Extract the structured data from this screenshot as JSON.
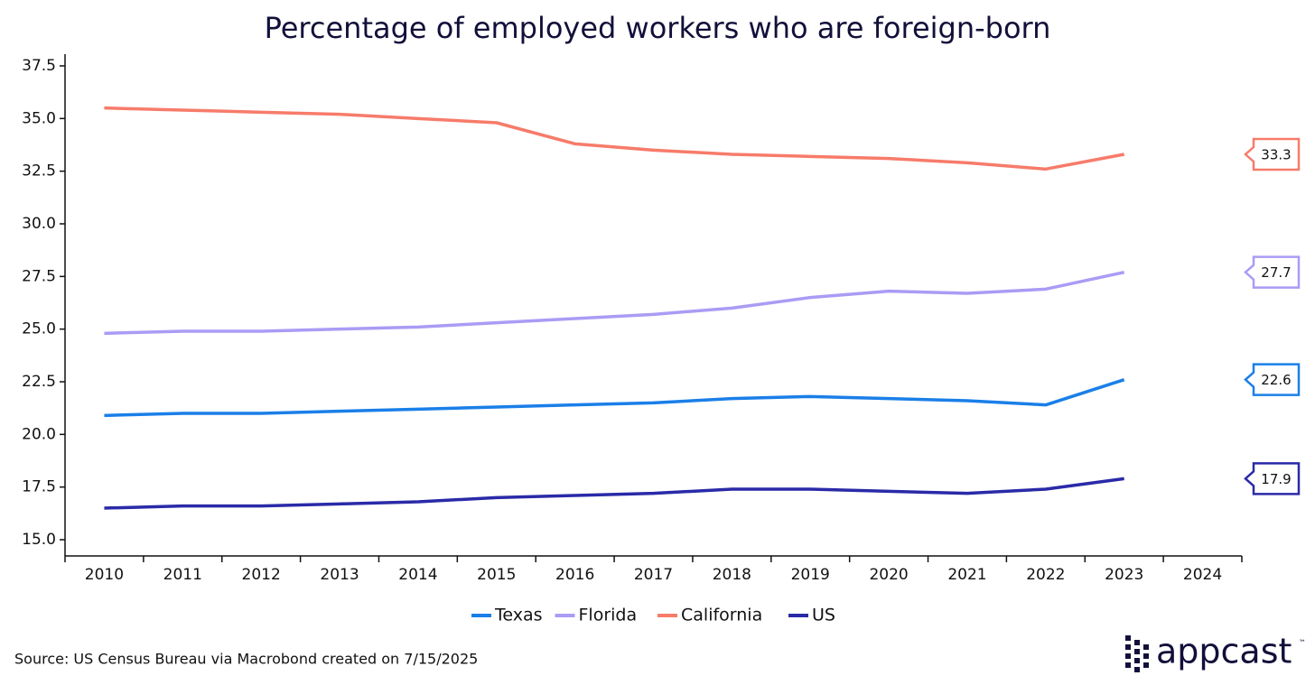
{
  "chart_data": {
    "type": "line",
    "title": "Percentage of employed workers who are foreign-born",
    "categories": [
      "2010",
      "2011",
      "2012",
      "2013",
      "2014",
      "2015",
      "2016",
      "2017",
      "2018",
      "2019",
      "2020",
      "2021",
      "2022",
      "2023",
      "2024"
    ],
    "series": [
      {
        "name": "Texas",
        "color": "#1a7fe8",
        "values": [
          20.9,
          21.0,
          21.0,
          21.1,
          21.2,
          21.3,
          21.4,
          21.5,
          21.7,
          21.8,
          21.7,
          21.6,
          21.4,
          22.6,
          null
        ]
      },
      {
        "name": "Florida",
        "color": "#a99cf5",
        "values": [
          24.8,
          24.9,
          24.9,
          25.0,
          25.1,
          25.3,
          25.5,
          25.7,
          26.0,
          26.5,
          26.8,
          26.7,
          26.9,
          27.7,
          null
        ]
      },
      {
        "name": "California",
        "color": "#f77b6a",
        "values": [
          35.5,
          35.4,
          35.3,
          35.2,
          35.0,
          34.8,
          33.8,
          33.5,
          33.3,
          33.2,
          33.1,
          32.9,
          32.6,
          33.3,
          null
        ]
      },
      {
        "name": "US",
        "color": "#2a2aa8",
        "values": [
          16.5,
          16.6,
          16.6,
          16.7,
          16.8,
          17.0,
          17.1,
          17.2,
          17.4,
          17.4,
          17.3,
          17.2,
          17.4,
          17.9,
          null
        ]
      }
    ],
    "ylim": [
      15,
      37.5
    ],
    "yticks": [
      {
        "value": 15,
        "label": "15.0"
      },
      17.5,
      {
        "value": 20,
        "label": "20.0"
      },
      22.5,
      {
        "value": 25,
        "label": "25.0"
      },
      27.5,
      {
        "value": 30,
        "label": "30.0"
      },
      32.5,
      {
        "value": 35,
        "label": "35.0"
      },
      37.5
    ],
    "grid": false,
    "legend": "bottom",
    "source": "Source: US Census Bureau via Macrobond created on 7/15/2025"
  },
  "logo": {
    "text": "appcast",
    "mark": "™"
  }
}
